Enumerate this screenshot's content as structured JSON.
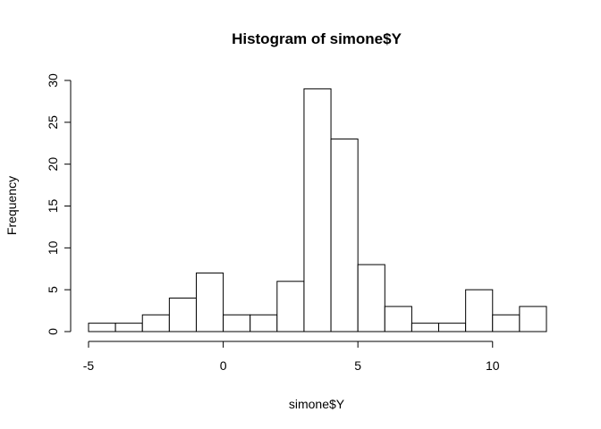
{
  "chart_data": {
    "type": "bar",
    "title": "Histogram of simone$Y",
    "xlabel": "simone$Y",
    "ylabel": "Frequency",
    "bin_edges": [
      -5,
      -4,
      -3,
      -2,
      -1,
      0,
      1,
      2,
      3,
      4,
      5,
      6,
      7,
      8,
      9,
      10,
      11,
      12
    ],
    "values": [
      1,
      1,
      2,
      4,
      7,
      2,
      2,
      6,
      29,
      23,
      8,
      3,
      1,
      1,
      5,
      2,
      3
    ],
    "xticks": [
      -5,
      0,
      5,
      10
    ],
    "yticks": [
      0,
      5,
      10,
      15,
      20,
      25,
      30
    ],
    "xlim": [
      -5,
      12
    ],
    "ylim": [
      0,
      30
    ],
    "grid": false,
    "colors": {
      "bar_fill": "#ffffff",
      "bar_stroke": "#000000"
    }
  }
}
